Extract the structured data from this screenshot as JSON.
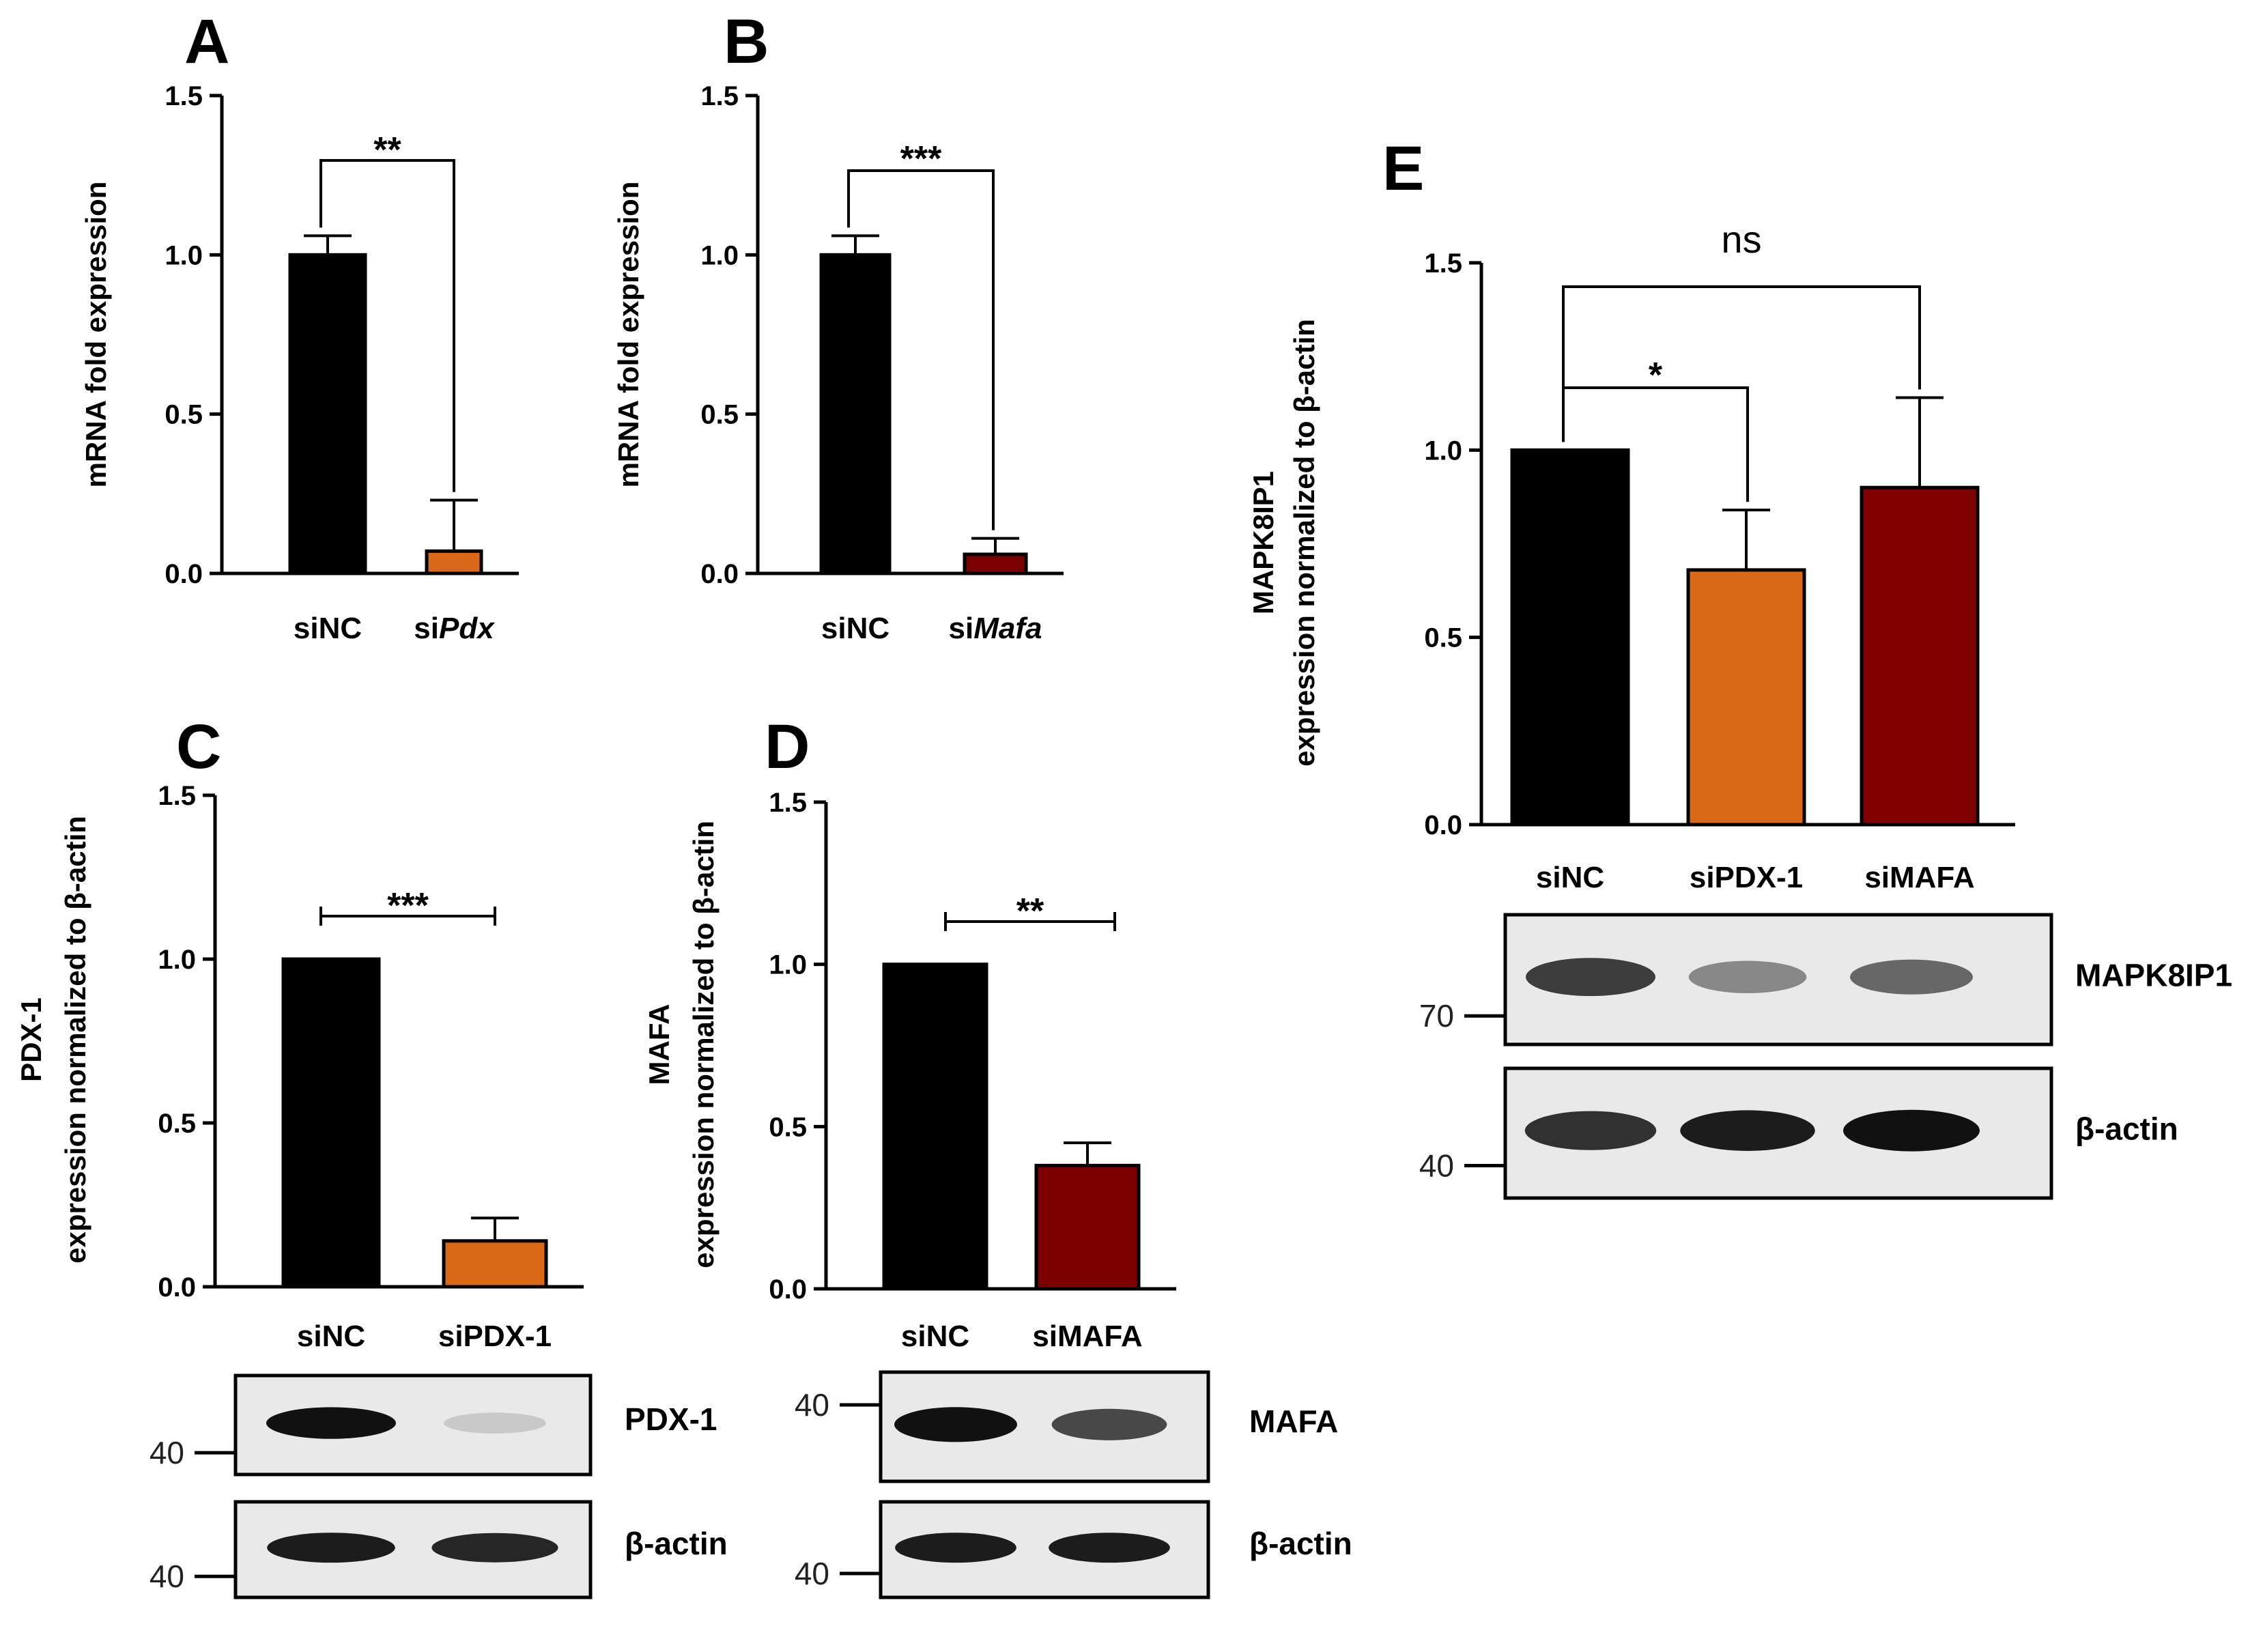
{
  "colors": {
    "siNC": "#000000",
    "siPdx": "#d8681a",
    "siMafa": "#7d0000",
    "siPDX1_E": "#d96916",
    "siMAFA_E": "#800000",
    "blot_bg": "#e9e9e9",
    "band": "#111111"
  },
  "panels": {
    "A": {
      "label": "A"
    },
    "B": {
      "label": "B"
    },
    "C": {
      "label": "C"
    },
    "D": {
      "label": "D"
    },
    "E": {
      "label": "E"
    }
  },
  "chart_data": [
    {
      "panel": "A",
      "type": "bar",
      "categories": [
        "siNC",
        "siPdx"
      ],
      "category_prefix": [
        "siNC",
        "si"
      ],
      "category_italic": [
        "",
        "Pdx"
      ],
      "values": [
        1.0,
        0.07
      ],
      "errors": [
        0.06,
        0.16
      ],
      "ylabel": "mRNA fold expression",
      "ylim": [
        0,
        1.5
      ],
      "yticks": [
        "0.0",
        "0.5",
        "1.0",
        "1.5"
      ],
      "significance": [
        {
          "from": 0,
          "to": 1,
          "label": "**"
        }
      ]
    },
    {
      "panel": "B",
      "type": "bar",
      "categories": [
        "siNC",
        "siMafa"
      ],
      "category_prefix": [
        "siNC",
        "si"
      ],
      "category_italic": [
        "",
        "Mafa"
      ],
      "values": [
        1.0,
        0.06
      ],
      "errors": [
        0.06,
        0.05
      ],
      "ylabel": "mRNA fold expression",
      "ylim": [
        0,
        1.5
      ],
      "yticks": [
        "0.0",
        "0.5",
        "1.0",
        "1.5"
      ],
      "significance": [
        {
          "from": 0,
          "to": 1,
          "label": "***"
        }
      ]
    },
    {
      "panel": "C",
      "type": "bar",
      "categories": [
        "siNC",
        "siPDX-1"
      ],
      "values": [
        1.0,
        0.14
      ],
      "errors": [
        0.0,
        0.07
      ],
      "ylabel_line1": "PDX-1",
      "ylabel_line2": "expression normalized to β-actin",
      "ylim": [
        0,
        1.5
      ],
      "yticks": [
        "0.0",
        "0.5",
        "1.0",
        "1.5"
      ],
      "significance": [
        {
          "from": 0,
          "to": 1,
          "label": "***"
        }
      ]
    },
    {
      "panel": "D",
      "type": "bar",
      "categories": [
        "siNC",
        "siMAFA"
      ],
      "values": [
        1.0,
        0.38
      ],
      "errors": [
        0.0,
        0.07
      ],
      "ylabel_line1": "MAFA",
      "ylabel_line2": "expression normalized to β-actin",
      "ylim": [
        0,
        1.5
      ],
      "yticks": [
        "0.0",
        "0.5",
        "1.0",
        "1.5"
      ],
      "significance": [
        {
          "from": 0,
          "to": 1,
          "label": "**"
        }
      ]
    },
    {
      "panel": "E",
      "type": "bar",
      "categories": [
        "siNC",
        "siPDX-1",
        "siMAFA"
      ],
      "values": [
        1.0,
        0.68,
        0.9
      ],
      "errors": [
        0.0,
        0.16,
        0.24
      ],
      "ylabel_line1": "MAPK8IP1",
      "ylabel_line2": "expression normalized to β-actin",
      "ylim": [
        0,
        1.5
      ],
      "yticks": [
        "0.0",
        "0.5",
        "1.0",
        "1.5"
      ],
      "significance": [
        {
          "from": 0,
          "to": 1,
          "label": "*"
        },
        {
          "from": 0,
          "to": 2,
          "label": "ns"
        }
      ]
    }
  ],
  "blots": {
    "C": [
      {
        "name": "PDX-1",
        "mw": "40",
        "intensity": [
          1.0,
          0.15
        ]
      },
      {
        "name": "β-actin",
        "mw": "40",
        "intensity": [
          0.95,
          0.9
        ]
      }
    ],
    "D": [
      {
        "name": "MAFA",
        "mw": "40",
        "intensity": [
          1.0,
          0.75
        ]
      },
      {
        "name": "β-actin",
        "mw": "40",
        "intensity": [
          0.95,
          0.95
        ]
      }
    ],
    "E": [
      {
        "name": "MAPK8IP1",
        "mw": "70",
        "intensity": [
          0.8,
          0.45,
          0.6
        ]
      },
      {
        "name": "β-actin",
        "mw": "40",
        "intensity": [
          0.85,
          0.95,
          1.0
        ]
      }
    ]
  }
}
